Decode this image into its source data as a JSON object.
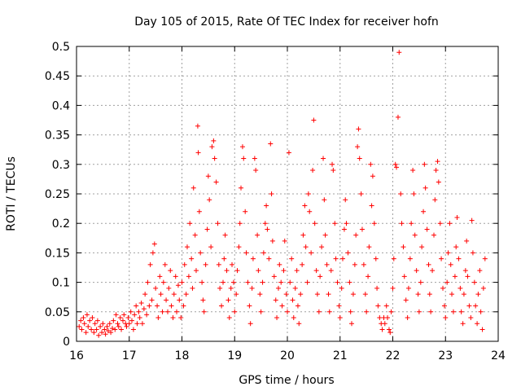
{
  "chart_data": {
    "type": "scatter",
    "title": "Day 105 of 2015, Rate Of TEC Index for receiver hofn",
    "xlabel": "GPS time / hours",
    "ylabel": "ROTI / TECUs",
    "xlim": [
      16,
      24
    ],
    "ylim": [
      0,
      0.5
    ],
    "xticks": [
      "16",
      "17",
      "18",
      "19",
      "20",
      "21",
      "22",
      "23",
      "24"
    ],
    "yticks": [
      "0",
      "0.05",
      "0.1",
      "0.15",
      "0.2",
      "0.25",
      "0.3",
      "0.35",
      "0.4",
      "0.45",
      "0.5"
    ],
    "grid": true,
    "legend": "none",
    "marker": "plus",
    "color": "#ff0000",
    "series": [
      {
        "points": [
          [
            16.05,
            0.025
          ],
          [
            16.08,
            0.035
          ],
          [
            16.1,
            0.02
          ],
          [
            16.13,
            0.04
          ],
          [
            16.15,
            0.03
          ],
          [
            16.18,
            0.015
          ],
          [
            16.2,
            0.045
          ],
          [
            16.22,
            0.025
          ],
          [
            16.25,
            0.035
          ],
          [
            16.28,
            0.02
          ],
          [
            16.3,
            0.04
          ],
          [
            16.33,
            0.015
          ],
          [
            16.35,
            0.03
          ],
          [
            16.38,
            0.02
          ],
          [
            16.4,
            0.035
          ],
          [
            16.42,
            0.01
          ],
          [
            16.45,
            0.025
          ],
          [
            16.48,
            0.015
          ],
          [
            16.5,
            0.03
          ],
          [
            16.53,
            0.02
          ],
          [
            16.55,
            0.012
          ],
          [
            16.58,
            0.025
          ],
          [
            16.6,
            0.018
          ],
          [
            16.63,
            0.03
          ],
          [
            16.65,
            0.015
          ],
          [
            16.68,
            0.022
          ],
          [
            16.7,
            0.035
          ],
          [
            16.73,
            0.02
          ],
          [
            16.75,
            0.045
          ],
          [
            16.78,
            0.03
          ],
          [
            16.8,
            0.025
          ],
          [
            16.83,
            0.04
          ],
          [
            16.85,
            0.02
          ],
          [
            16.88,
            0.035
          ],
          [
            16.9,
            0.045
          ],
          [
            16.93,
            0.03
          ],
          [
            16.95,
            0.025
          ],
          [
            16.98,
            0.04
          ],
          [
            17.0,
            0.03
          ],
          [
            17.03,
            0.05
          ],
          [
            17.05,
            0.035
          ],
          [
            17.08,
            0.02
          ],
          [
            17.1,
            0.045
          ],
          [
            17.13,
            0.06
          ],
          [
            17.15,
            0.03
          ],
          [
            17.18,
            0.05
          ],
          [
            17.2,
            0.04
          ],
          [
            17.23,
            0.065
          ],
          [
            17.25,
            0.03
          ],
          [
            17.28,
            0.055
          ],
          [
            17.3,
            0.08
          ],
          [
            17.33,
            0.045
          ],
          [
            17.35,
            0.1
          ],
          [
            17.38,
            0.06
          ],
          [
            17.4,
            0.13
          ],
          [
            17.43,
            0.07
          ],
          [
            17.45,
            0.15
          ],
          [
            17.48,
            0.165
          ],
          [
            17.5,
            0.09
          ],
          [
            17.53,
            0.06
          ],
          [
            17.55,
            0.04
          ],
          [
            17.58,
            0.11
          ],
          [
            17.6,
            0.08
          ],
          [
            17.63,
            0.05
          ],
          [
            17.65,
            0.1
          ],
          [
            17.68,
            0.13
          ],
          [
            17.7,
            0.07
          ],
          [
            17.73,
            0.05
          ],
          [
            17.75,
            0.09
          ],
          [
            17.78,
            0.12
          ],
          [
            17.8,
            0.06
          ],
          [
            17.83,
            0.04
          ],
          [
            17.85,
            0.08
          ],
          [
            17.88,
            0.11
          ],
          [
            17.9,
            0.05
          ],
          [
            17.93,
            0.095
          ],
          [
            17.95,
            0.07
          ],
          [
            17.98,
            0.04
          ],
          [
            18.0,
            0.1
          ],
          [
            18.03,
            0.06
          ],
          [
            18.05,
            0.13
          ],
          [
            18.08,
            0.08
          ],
          [
            18.1,
            0.16
          ],
          [
            18.13,
            0.11
          ],
          [
            18.15,
            0.2
          ],
          [
            18.18,
            0.14
          ],
          [
            18.2,
            0.09
          ],
          [
            18.22,
            0.26
          ],
          [
            18.25,
            0.18
          ],
          [
            18.27,
            0.12
          ],
          [
            18.3,
            0.365
          ],
          [
            18.31,
            0.32
          ],
          [
            18.33,
            0.22
          ],
          [
            18.35,
            0.15
          ],
          [
            18.38,
            0.1
          ],
          [
            18.4,
            0.07
          ],
          [
            18.42,
            0.05
          ],
          [
            18.45,
            0.13
          ],
          [
            18.48,
            0.19
          ],
          [
            18.5,
            0.28
          ],
          [
            18.52,
            0.24
          ],
          [
            18.55,
            0.16
          ],
          [
            18.57,
            0.33
          ],
          [
            18.6,
            0.34
          ],
          [
            18.62,
            0.31
          ],
          [
            18.65,
            0.27
          ],
          [
            18.68,
            0.2
          ],
          [
            18.7,
            0.13
          ],
          [
            18.72,
            0.09
          ],
          [
            18.75,
            0.06
          ],
          [
            18.78,
            0.1
          ],
          [
            18.8,
            0.14
          ],
          [
            18.82,
            0.18
          ],
          [
            18.85,
            0.12
          ],
          [
            18.88,
            0.07
          ],
          [
            18.9,
            0.04
          ],
          [
            18.93,
            0.09
          ],
          [
            18.95,
            0.13
          ],
          [
            18.98,
            0.1
          ],
          [
            19.0,
            0.05
          ],
          [
            19.03,
            0.08
          ],
          [
            19.05,
            0.12
          ],
          [
            19.08,
            0.16
          ],
          [
            19.1,
            0.2
          ],
          [
            19.12,
            0.26
          ],
          [
            19.15,
            0.33
          ],
          [
            19.17,
            0.31
          ],
          [
            19.2,
            0.22
          ],
          [
            19.22,
            0.15
          ],
          [
            19.25,
            0.1
          ],
          [
            19.28,
            0.06
          ],
          [
            19.3,
            0.03
          ],
          [
            19.33,
            0.09
          ],
          [
            19.35,
            0.14
          ],
          [
            19.38,
            0.31
          ],
          [
            19.4,
            0.29
          ],
          [
            19.43,
            0.18
          ],
          [
            19.45,
            0.12
          ],
          [
            19.48,
            0.08
          ],
          [
            19.5,
            0.05
          ],
          [
            19.53,
            0.1
          ],
          [
            19.55,
            0.15
          ],
          [
            19.58,
            0.2
          ],
          [
            19.6,
            0.23
          ],
          [
            19.62,
            0.19
          ],
          [
            19.65,
            0.14
          ],
          [
            19.68,
            0.335
          ],
          [
            19.7,
            0.25
          ],
          [
            19.72,
            0.17
          ],
          [
            19.75,
            0.11
          ],
          [
            19.78,
            0.07
          ],
          [
            19.8,
            0.04
          ],
          [
            19.83,
            0.09
          ],
          [
            19.85,
            0.13
          ],
          [
            19.88,
            0.1
          ],
          [
            19.9,
            0.06
          ],
          [
            19.93,
            0.12
          ],
          [
            19.95,
            0.17
          ],
          [
            19.98,
            0.08
          ],
          [
            20.0,
            0.05
          ],
          [
            20.03,
            0.32
          ],
          [
            20.05,
            0.1
          ],
          [
            20.08,
            0.14
          ],
          [
            20.1,
            0.07
          ],
          [
            20.12,
            0.04
          ],
          [
            20.15,
            0.09
          ],
          [
            20.18,
            0.12
          ],
          [
            20.2,
            0.06
          ],
          [
            20.22,
            0.03
          ],
          [
            20.25,
            0.08
          ],
          [
            20.28,
            0.13
          ],
          [
            20.3,
            0.18
          ],
          [
            20.33,
            0.23
          ],
          [
            20.35,
            0.16
          ],
          [
            20.38,
            0.1
          ],
          [
            20.4,
            0.25
          ],
          [
            20.42,
            0.22
          ],
          [
            20.45,
            0.15
          ],
          [
            20.48,
            0.29
          ],
          [
            20.5,
            0.375
          ],
          [
            20.52,
            0.2
          ],
          [
            20.55,
            0.12
          ],
          [
            20.57,
            0.08
          ],
          [
            20.6,
            0.05
          ],
          [
            20.62,
            0.11
          ],
          [
            20.65,
            0.16
          ],
          [
            20.68,
            0.31
          ],
          [
            20.7,
            0.24
          ],
          [
            20.72,
            0.18
          ],
          [
            20.75,
            0.13
          ],
          [
            20.78,
            0.08
          ],
          [
            20.8,
            0.05
          ],
          [
            20.83,
            0.12
          ],
          [
            20.85,
            0.3
          ],
          [
            20.87,
            0.29
          ],
          [
            20.9,
            0.2
          ],
          [
            20.92,
            0.14
          ],
          [
            20.95,
            0.1
          ],
          [
            20.98,
            0.06
          ],
          [
            21.0,
            0.04
          ],
          [
            21.03,
            0.09
          ],
          [
            21.05,
            0.14
          ],
          [
            21.08,
            0.19
          ],
          [
            21.1,
            0.24
          ],
          [
            21.12,
            0.2
          ],
          [
            21.15,
            0.15
          ],
          [
            21.18,
            0.1
          ],
          [
            21.2,
            0.05
          ],
          [
            21.22,
            0.03
          ],
          [
            21.25,
            0.08
          ],
          [
            21.28,
            0.13
          ],
          [
            21.3,
            0.18
          ],
          [
            21.33,
            0.33
          ],
          [
            21.35,
            0.36
          ],
          [
            21.37,
            0.31
          ],
          [
            21.4,
            0.25
          ],
          [
            21.42,
            0.19
          ],
          [
            21.45,
            0.13
          ],
          [
            21.48,
            0.08
          ],
          [
            21.5,
            0.05
          ],
          [
            21.53,
            0.11
          ],
          [
            21.55,
            0.16
          ],
          [
            21.58,
            0.3
          ],
          [
            21.6,
            0.23
          ],
          [
            21.62,
            0.28
          ],
          [
            21.65,
            0.2
          ],
          [
            21.68,
            0.14
          ],
          [
            21.7,
            0.09
          ],
          [
            21.72,
            0.06
          ],
          [
            21.75,
            0.04
          ],
          [
            21.78,
            0.03
          ],
          [
            21.8,
            0.02
          ],
          [
            21.83,
            0.04
          ],
          [
            21.85,
            0.03
          ],
          [
            21.88,
            0.06
          ],
          [
            21.9,
            0.04
          ],
          [
            21.93,
            0.02
          ],
          [
            21.95,
            0.015
          ],
          [
            21.97,
            0.05
          ],
          [
            22.0,
            0.09
          ],
          [
            22.02,
            0.14
          ],
          [
            22.05,
            0.3
          ],
          [
            22.07,
            0.295
          ],
          [
            22.1,
            0.38
          ],
          [
            22.12,
            0.49
          ],
          [
            22.15,
            0.25
          ],
          [
            22.17,
            0.2
          ],
          [
            22.2,
            0.16
          ],
          [
            22.22,
            0.11
          ],
          [
            22.25,
            0.07
          ],
          [
            22.28,
            0.04
          ],
          [
            22.3,
            0.09
          ],
          [
            22.33,
            0.14
          ],
          [
            22.35,
            0.2
          ],
          [
            22.38,
            0.29
          ],
          [
            22.4,
            0.25
          ],
          [
            22.42,
            0.18
          ],
          [
            22.45,
            0.12
          ],
          [
            22.48,
            0.08
          ],
          [
            22.5,
            0.05
          ],
          [
            22.53,
            0.1
          ],
          [
            22.55,
            0.16
          ],
          [
            22.58,
            0.22
          ],
          [
            22.6,
            0.3
          ],
          [
            22.62,
            0.26
          ],
          [
            22.65,
            0.19
          ],
          [
            22.68,
            0.13
          ],
          [
            22.7,
            0.08
          ],
          [
            22.72,
            0.05
          ],
          [
            22.75,
            0.12
          ],
          [
            22.78,
            0.18
          ],
          [
            22.8,
            0.24
          ],
          [
            22.82,
            0.29
          ],
          [
            22.85,
            0.305
          ],
          [
            22.87,
            0.27
          ],
          [
            22.9,
            0.2
          ],
          [
            22.92,
            0.14
          ],
          [
            22.95,
            0.09
          ],
          [
            22.98,
            0.06
          ],
          [
            23.0,
            0.04
          ],
          [
            23.03,
            0.1
          ],
          [
            23.05,
            0.15
          ],
          [
            23.08,
            0.2
          ],
          [
            23.1,
            0.13
          ],
          [
            23.12,
            0.08
          ],
          [
            23.15,
            0.05
          ],
          [
            23.18,
            0.11
          ],
          [
            23.2,
            0.16
          ],
          [
            23.22,
            0.21
          ],
          [
            23.25,
            0.14
          ],
          [
            23.28,
            0.09
          ],
          [
            23.3,
            0.05
          ],
          [
            23.33,
            0.03
          ],
          [
            23.35,
            0.08
          ],
          [
            23.38,
            0.12
          ],
          [
            23.4,
            0.17
          ],
          [
            23.42,
            0.11
          ],
          [
            23.45,
            0.06
          ],
          [
            23.48,
            0.04
          ],
          [
            23.5,
            0.205
          ],
          [
            23.52,
            0.15
          ],
          [
            23.55,
            0.1
          ],
          [
            23.57,
            0.06
          ],
          [
            23.6,
            0.03
          ],
          [
            23.62,
            0.08
          ],
          [
            23.65,
            0.12
          ],
          [
            23.67,
            0.05
          ],
          [
            23.7,
            0.02
          ],
          [
            23.72,
            0.09
          ],
          [
            23.75,
            0.14
          ]
        ]
      }
    ]
  }
}
